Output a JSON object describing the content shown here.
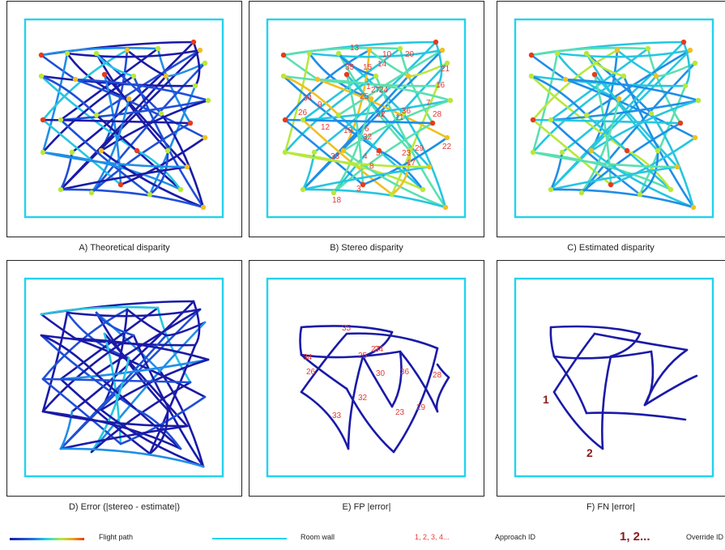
{
  "panels": [
    {
      "id": "A",
      "caption": "A) Theoretical disparity",
      "labels": []
    },
    {
      "id": "B",
      "caption": "B) Stereo disparity",
      "labels": [
        {
          "t": "13"
        },
        {
          "t": "10"
        },
        {
          "t": "20"
        },
        {
          "t": "14"
        },
        {
          "t": "35"
        },
        {
          "t": "15"
        },
        {
          "t": "21"
        },
        {
          "t": "1"
        },
        {
          "t": "27"
        },
        {
          "t": "24"
        },
        {
          "t": "16"
        },
        {
          "t": "25"
        },
        {
          "t": "34"
        },
        {
          "t": "9"
        },
        {
          "t": "7"
        },
        {
          "t": "36"
        },
        {
          "t": "31"
        },
        {
          "t": "2"
        },
        {
          "t": "11"
        },
        {
          "t": "28"
        },
        {
          "t": "26"
        },
        {
          "t": "12"
        },
        {
          "t": "19"
        },
        {
          "t": "6"
        },
        {
          "t": "32"
        },
        {
          "t": "29"
        },
        {
          "t": "22"
        },
        {
          "t": "33"
        },
        {
          "t": "5"
        },
        {
          "t": "4"
        },
        {
          "t": "23"
        },
        {
          "t": "17"
        },
        {
          "t": "8"
        },
        {
          "t": "3"
        },
        {
          "t": "18"
        }
      ]
    },
    {
      "id": "C",
      "caption": "C) Estimated disparity",
      "labels": []
    },
    {
      "id": "D",
      "caption": "D) Error (|stereo - estimate|)",
      "labels": []
    },
    {
      "id": "E",
      "caption": "E) FP |error|",
      "labels": [
        {
          "t": "35"
        },
        {
          "t": "34"
        },
        {
          "t": "25"
        },
        {
          "t": "27"
        },
        {
          "t": "24"
        },
        {
          "t": "26"
        },
        {
          "t": "30"
        },
        {
          "t": "36"
        },
        {
          "t": "28"
        },
        {
          "t": "32"
        },
        {
          "t": "29"
        },
        {
          "t": "23"
        },
        {
          "t": "33"
        }
      ]
    },
    {
      "id": "F",
      "caption": "F) FN |error|",
      "labels": [
        {
          "t": "1"
        },
        {
          "t": "2"
        }
      ]
    }
  ],
  "legend": {
    "flight_path": "Flight path",
    "room_wall": "Room wall",
    "approach_sample": "1, 2, 3, 4...",
    "approach_label": "Approach ID",
    "override_sample": "1, 2...",
    "override_label": "Override ID"
  },
  "colors": {
    "wall": "#22d3ee",
    "id_red": "#e53935",
    "override": "#8b1a1a",
    "path_low": "#1a1aa8",
    "path_high": "#e83a1a"
  }
}
